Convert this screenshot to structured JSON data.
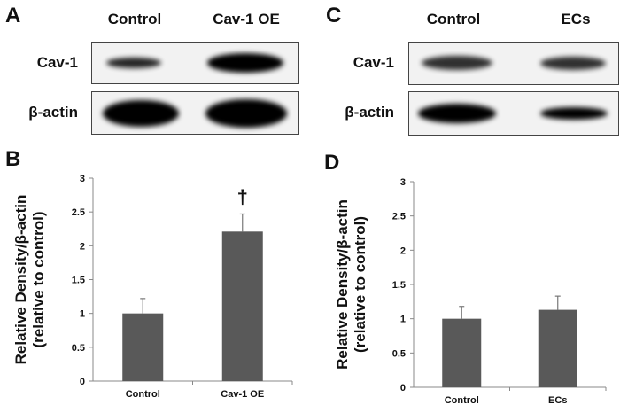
{
  "panels": {
    "A": {
      "letter": "A",
      "columns": [
        "Control",
        "Cav-1 OE"
      ],
      "rows": [
        "Cav-1",
        "β-actin"
      ]
    },
    "B": {
      "letter": "B"
    },
    "C": {
      "letter": "C",
      "columns": [
        "Control",
        "ECs"
      ],
      "rows": [
        "Cav-1",
        "β-actin"
      ]
    },
    "D": {
      "letter": "D"
    }
  },
  "colors": {
    "bar": "#595959",
    "error": "#777777",
    "axis": "#888888"
  },
  "chart_data": [
    {
      "type": "bar",
      "panel": "B",
      "title": "",
      "xlabel": "",
      "ylabel": "Relative Density/β-actin",
      "ylabel2": "(relative to control)",
      "categories": [
        "Control",
        "Cav-1 OE"
      ],
      "values": [
        1.0,
        2.21
      ],
      "errors": [
        0.22,
        0.26
      ],
      "annotations": [
        {
          "category": "Cav-1 OE",
          "text": "†"
        }
      ],
      "ylim": [
        0,
        3
      ],
      "yticks": [
        "0",
        "0.5",
        "1",
        "1.5",
        "2",
        "2.5",
        "3"
      ],
      "grid": false
    },
    {
      "type": "bar",
      "panel": "D",
      "title": "",
      "xlabel": "",
      "ylabel": "Relative Density/β-actin",
      "ylabel2": "(relative to control)",
      "categories": [
        "Control",
        "ECs"
      ],
      "values": [
        1.0,
        1.13
      ],
      "errors": [
        0.18,
        0.2
      ],
      "annotations": [],
      "ylim": [
        0,
        3
      ],
      "yticks": [
        "0",
        "0.5",
        "1",
        "1.5",
        "2",
        "2.5",
        "3"
      ],
      "grid": false
    }
  ]
}
